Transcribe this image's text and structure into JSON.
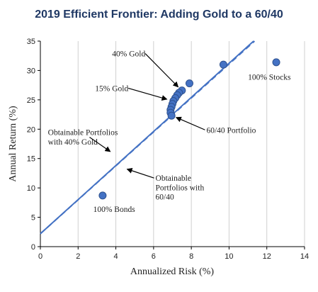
{
  "chart_data": {
    "type": "scatter",
    "title": "2019 Efficient Frontier: Adding Gold to a 60/40",
    "xlabel": "Annualized Risk (%)",
    "ylabel": "Annual Return (%)",
    "xlim": [
      0,
      14
    ],
    "ylim": [
      0,
      35
    ],
    "xticks": [
      0,
      2,
      4,
      6,
      8,
      10,
      12,
      14
    ],
    "yticks": [
      0,
      5,
      10,
      15,
      20,
      25,
      30,
      35
    ],
    "grid": "vertical",
    "points": [
      {
        "x": 3.3,
        "y": 8.7
      },
      {
        "x": 12.5,
        "y": 31.4
      },
      {
        "x": 9.7,
        "y": 31.0
      },
      {
        "x": 7.9,
        "y": 27.8
      },
      {
        "x": 7.5,
        "y": 26.6
      },
      {
        "x": 7.35,
        "y": 26.2
      },
      {
        "x": 7.25,
        "y": 25.8
      },
      {
        "x": 7.15,
        "y": 25.3
      },
      {
        "x": 7.05,
        "y": 24.8
      },
      {
        "x": 7.0,
        "y": 24.3
      },
      {
        "x": 6.95,
        "y": 23.8
      },
      {
        "x": 6.9,
        "y": 23.3
      },
      {
        "x": 6.9,
        "y": 22.8
      },
      {
        "x": 6.95,
        "y": 22.3
      }
    ],
    "lines": [
      {
        "style": "solid",
        "x": [
          0,
          11.3
        ],
        "y": [
          2.2,
          35
        ]
      },
      {
        "style": "dashed",
        "x": [
          0,
          11.35
        ],
        "y": [
          2.2,
          35
        ]
      }
    ],
    "annotations": [
      {
        "text": "40% Gold",
        "lines": [
          "40% Gold"
        ],
        "x": 3.8,
        "y": 32.4,
        "arrow_to": [
          7.3,
          27.2
        ]
      },
      {
        "text": "15% Gold",
        "lines": [
          "15% Gold"
        ],
        "x": 2.9,
        "y": 26.5,
        "arrow_to": [
          6.7,
          25.1
        ]
      },
      {
        "text": "60/40 Portfolio",
        "lines": [
          "60/40 Portfolio"
        ],
        "x": 8.8,
        "y": 19.4,
        "arrow_to": [
          7.2,
          22.0
        ]
      },
      {
        "text": "100% Stocks",
        "lines": [
          "100% Stocks"
        ],
        "x": 11.0,
        "y": 28.4,
        "arrow_to": null
      },
      {
        "text": "100% Bonds",
        "lines": [
          "100% Bonds"
        ],
        "x": 2.8,
        "y": 5.9,
        "arrow_to": null
      },
      {
        "text": "Obtainable Portfolios with 40% Gold",
        "lines": [
          "Obtainable Portfolios",
          "with 40% Gold"
        ],
        "x": 0.4,
        "y": 19.0,
        "arrow_to": [
          3.7,
          16.2
        ]
      },
      {
        "text": "Obtainable Portfolios with 60/40",
        "lines": [
          "Obtainable",
          "Portfolios with",
          "60/40"
        ],
        "x": 6.1,
        "y": 11.2,
        "arrow_to": [
          4.6,
          13.2
        ]
      }
    ],
    "colors": {
      "marker": "#4472c4",
      "marker_edge": "#2f528f",
      "line": "#4472c4",
      "title": "#1f3864"
    }
  }
}
